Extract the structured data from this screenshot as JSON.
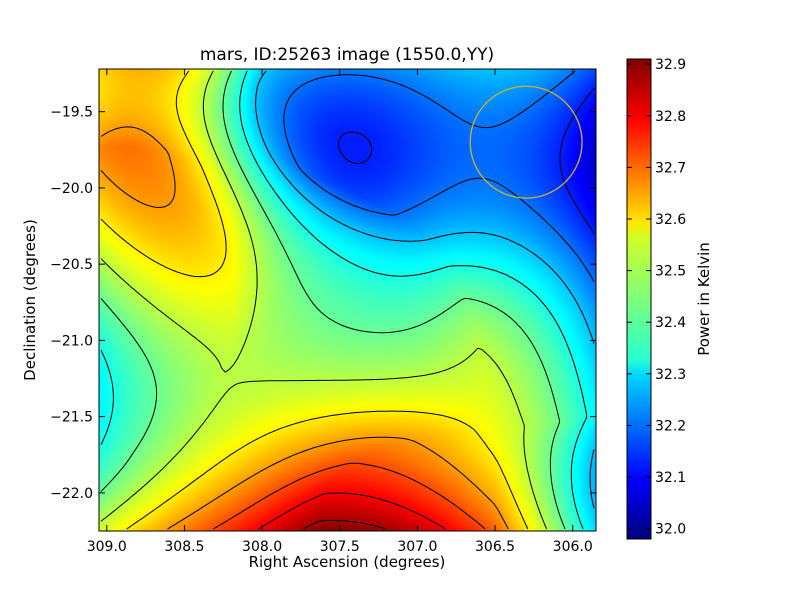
{
  "chart_data": {
    "type": "heatmap",
    "title": "mars, ID:25263 image (1550.0,YY)",
    "xlabel": "Right Ascension (degrees)",
    "ylabel": "Declination (degrees)",
    "colorbar_label": "Power in Kelvin",
    "xlim": [
      309.05,
      305.85
    ],
    "ylim": [
      -22.25,
      -19.22
    ],
    "x_ticks": [
      309.0,
      308.5,
      308.0,
      307.5,
      307.0,
      306.5,
      306.0
    ],
    "x_tick_labels": [
      "309.0",
      "308.5",
      "308.0",
      "307.5",
      "307.0",
      "306.5",
      "306.0"
    ],
    "y_ticks": [
      -19.5,
      -20.0,
      -20.5,
      -21.0,
      -21.5,
      -22.0
    ],
    "y_tick_labels": [
      "−19.5",
      "−20.0",
      "−20.5",
      "−21.0",
      "−21.5",
      "−22.0"
    ],
    "colorbar_range": [
      31.98,
      32.91
    ],
    "colorbar_ticks": [
      32.0,
      32.1,
      32.2,
      32.3,
      32.4,
      32.5,
      32.6,
      32.7,
      32.8,
      32.9
    ],
    "colorbar_tick_labels": [
      "32.0",
      "32.1",
      "32.2",
      "32.3",
      "32.4",
      "32.5",
      "32.6",
      "32.7",
      "32.8",
      "32.9"
    ],
    "colormap": "jet",
    "contours": true,
    "contour_color": "#000000",
    "saddle": {
      "x": 307.8,
      "y": -20.75,
      "value": 32.4
    },
    "features": [
      {
        "x": 307.1,
        "y": -22.25,
        "value": 32.91
      },
      {
        "x": 307.4,
        "y": -19.22,
        "value": 31.98
      },
      {
        "x": 309.05,
        "y": -20.33,
        "value": 32.78
      },
      {
        "x": 309.05,
        "y": -21.18,
        "value": 32.17
      },
      {
        "x": 306.3,
        "y": -19.7,
        "value": 32.2
      },
      {
        "x": 305.85,
        "y": -20.9,
        "value": 32.4
      }
    ],
    "circle": {
      "x": 306.3,
      "y": -19.7,
      "radius": 0.36,
      "color": "#c8b432"
    }
  }
}
